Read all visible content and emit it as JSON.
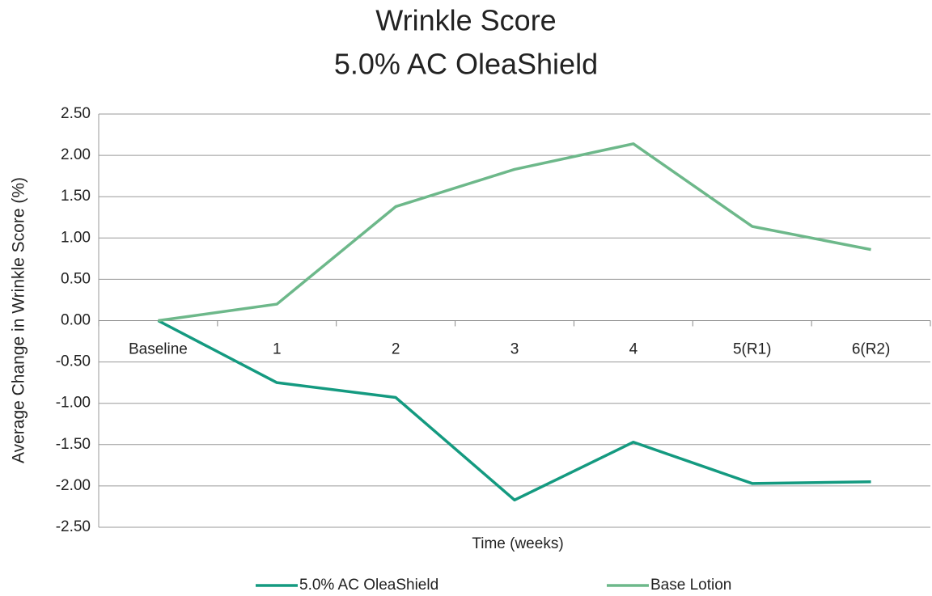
{
  "chart_data": {
    "type": "line",
    "title": "Wrinkle Score",
    "subtitle": "5.0% AC OleaShield",
    "x_label": "Time (weeks)",
    "y_label": "Average Change in Wrinkle Score (%)",
    "categories": [
      "Baseline",
      "1",
      "2",
      "3",
      "4",
      "5(R1)",
      "6(R2)"
    ],
    "series": [
      {
        "name": "5.0% AC OleaShield",
        "color": "#149a80",
        "values": [
          0,
          -0.75,
          -0.93,
          -2.17,
          -1.47,
          -1.97,
          -1.95
        ]
      },
      {
        "name": "Base Lotion",
        "color": "#6db88a",
        "values": [
          0,
          0.2,
          1.38,
          1.83,
          2.14,
          1.14,
          0.86
        ]
      }
    ],
    "ylim": [
      -2.5,
      2.5
    ],
    "yticks": [
      {
        "value": 2.5,
        "label": "2.50"
      },
      {
        "value": 2.0,
        "label": "2.00"
      },
      {
        "value": 1.5,
        "label": "1.50"
      },
      {
        "value": 1.0,
        "label": "1.00"
      },
      {
        "value": 0.5,
        "label": "0.50"
      },
      {
        "value": 0,
        "label": "0.00"
      },
      {
        "value": -0.5,
        "label": "-0.50"
      },
      {
        "value": -1.0,
        "label": "-1.00"
      },
      {
        "value": -1.5,
        "label": "-1.50"
      },
      {
        "value": -2.0,
        "label": "-2.00"
      },
      {
        "value": -2.5,
        "label": "-2.50"
      }
    ],
    "grid": true
  }
}
